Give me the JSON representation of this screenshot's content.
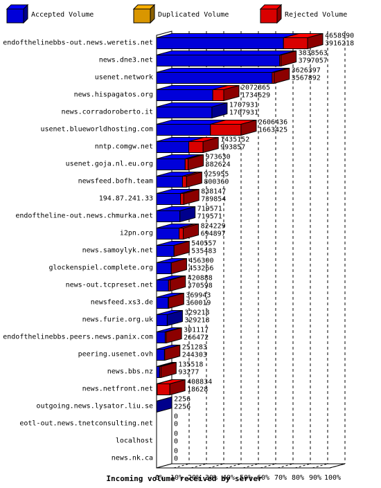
{
  "chart_data": {
    "type": "bar",
    "title": "",
    "xlabel": "Incoming volume received by server",
    "ylabel": "",
    "xlim": [
      0,
      100
    ],
    "x_unit": "%",
    "x_ticks": [
      "0%",
      "10%",
      "20%",
      "30%",
      "40%",
      "50%",
      "60%",
      "70%",
      "80%",
      "90%",
      "100%"
    ],
    "grid": true,
    "legend_position": "top",
    "legend": [
      {
        "name": "Accepted Volume",
        "color": "#0000ff"
      },
      {
        "name": "Duplicated Volume",
        "color": "#ffb000"
      },
      {
        "name": "Rejected Volume",
        "color": "#ff0000"
      }
    ],
    "rows": [
      {
        "server": "endofthelinebbs-out.news.weretis.net",
        "total": 4658990,
        "accepted": 3916218
      },
      {
        "server": "news.dne3.net",
        "total": 3838563,
        "accepted": 3797057
      },
      {
        "server": "usenet.network",
        "total": 3626397,
        "accepted": 3567892
      },
      {
        "server": "news.hispagatos.org",
        "total": 2072865,
        "accepted": 1734629
      },
      {
        "server": "news.corradoroberto.it",
        "total": 1707931,
        "accepted": 1707931
      },
      {
        "server": "usenet.blueworldhosting.com",
        "total": 2606436,
        "accepted": 1663425
      },
      {
        "server": "nntp.comgw.net",
        "total": 1435152,
        "accepted": 993857
      },
      {
        "server": "usenet.goja.nl.eu.org",
        "total": 973630,
        "accepted": 882624
      },
      {
        "server": "newsfeed.bofh.team",
        "total": 925955,
        "accepted": 800360
      },
      {
        "server": "194.87.241.33",
        "total": 838147,
        "accepted": 739854
      },
      {
        "server": "endoftheline-out.news.chmurka.net",
        "total": 719571,
        "accepted": 719571
      },
      {
        "server": "i2pn.org",
        "total": 824229,
        "accepted": 694897
      },
      {
        "server": "news.samoylyk.net",
        "total": 540557,
        "accepted": 535483
      },
      {
        "server": "glockenspiel.complete.org",
        "total": 456300,
        "accepted": 453266
      },
      {
        "server": "news-out.tcpreset.net",
        "total": 420888,
        "accepted": 370598
      },
      {
        "server": "newsfeed.xs3.de",
        "total": 369943,
        "accepted": 360019
      },
      {
        "server": "news.furie.org.uk",
        "total": 329218,
        "accepted": 329218
      },
      {
        "server": "endofthelinebbs.peers.news.panix.com",
        "total": 301117,
        "accepted": 266472
      },
      {
        "server": "peering.usenet.ovh",
        "total": 251283,
        "accepted": 244303
      },
      {
        "server": "news.bbs.nz",
        "total": 135518,
        "accepted": 93277
      },
      {
        "server": "news.netfront.net",
        "total": 408834,
        "accepted": 18628
      },
      {
        "server": "outgoing.news.lysator.liu.se",
        "total": 2256,
        "accepted": 2256
      },
      {
        "server": "eotl-out.news.tnetconsulting.net",
        "total": 0,
        "accepted": 0
      },
      {
        "server": "localhost",
        "total": 0,
        "accepted": 0
      },
      {
        "server": "news.nk.ca",
        "total": 0,
        "accepted": 0
      }
    ]
  }
}
